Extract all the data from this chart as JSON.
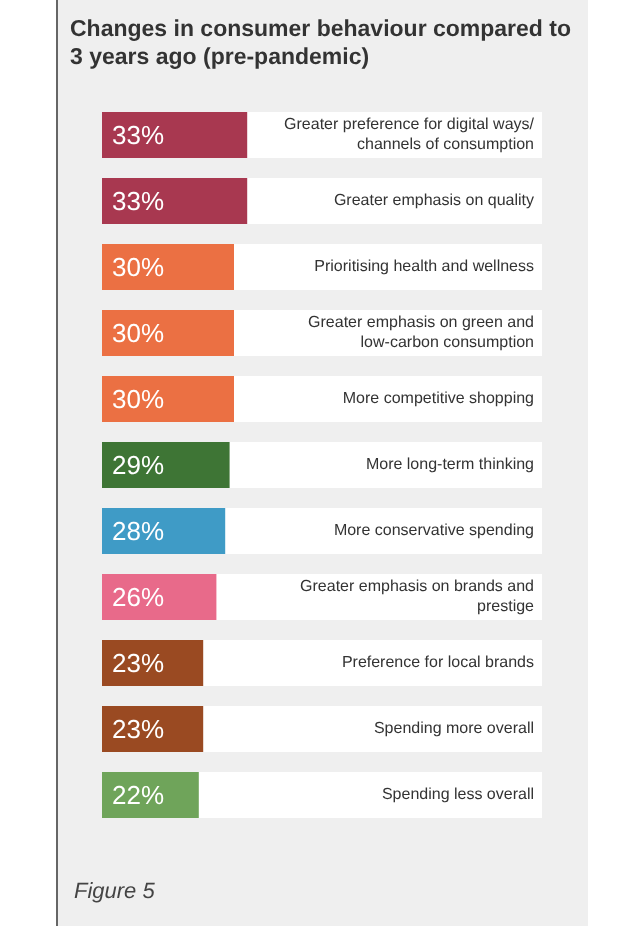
{
  "chart_data": {
    "type": "bar",
    "orientation": "horizontal",
    "title": "Changes in consumer behaviour compared to 3 years ago (pre-pandemic)",
    "categories": [
      "Greater preference for digital ways/ channels of consumption",
      "Greater emphasis on quality",
      "Prioritising health and wellness",
      "Greater emphasis on green and low-carbon consumption",
      "More competitive shopping",
      "More long-term thinking",
      "More conservative spending",
      "Greater emphasis on brands and prestige",
      "Preference for local brands",
      "Spending more overall",
      "Spending less overall"
    ],
    "values": [
      33,
      33,
      30,
      30,
      30,
      29,
      28,
      26,
      23,
      23,
      22
    ],
    "colors": [
      "#a83850",
      "#a83850",
      "#eb7043",
      "#eb7043",
      "#eb7043",
      "#3e7535",
      "#3f9bc6",
      "#e86a8a",
      "#9a4a22",
      "#9a4a22",
      "#6fa45a"
    ],
    "value_labels": [
      "33%",
      "33%",
      "30%",
      "30%",
      "30%",
      "29%",
      "28%",
      "26%",
      "23%",
      "23%",
      "22%"
    ],
    "xlim": [
      0,
      100
    ],
    "tick_labels": false,
    "legend": false,
    "annotations": [
      "Figure 5"
    ]
  }
}
